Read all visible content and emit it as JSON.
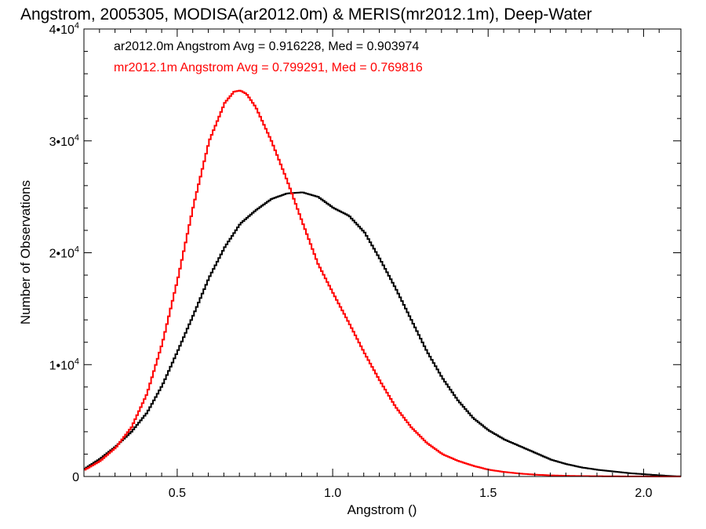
{
  "chart_data": {
    "type": "line",
    "title": "Angstrom, 2005305, MODISA(ar2012.0m) & MERIS(mr2012.1m), Deep-Water",
    "xlabel": "Angstrom ()",
    "ylabel": "Number of Observations",
    "xlim": [
      0.2,
      2.12
    ],
    "ylim": [
      0,
      40000
    ],
    "x_ticks": [
      {
        "value": 0.5,
        "label": "0.5"
      },
      {
        "value": 1.0,
        "label": "1.0"
      },
      {
        "value": 1.5,
        "label": "1.5"
      },
      {
        "value": 2.0,
        "label": "2.0"
      }
    ],
    "y_ticks": [
      {
        "value": 0,
        "mantissa": "0",
        "exp": ""
      },
      {
        "value": 10000,
        "mantissa": "1•10",
        "exp": "4"
      },
      {
        "value": 20000,
        "mantissa": "2•10",
        "exp": "4"
      },
      {
        "value": 30000,
        "mantissa": "3•10",
        "exp": "4"
      },
      {
        "value": 40000,
        "mantissa": "4•10",
        "exp": "4"
      }
    ],
    "grid": false,
    "style": "step",
    "series": [
      {
        "name": "ar2012.0m",
        "color": "#000000",
        "annotation": "ar2012.0m Angstrom Avg = 0.916228, Med = 0.903974",
        "points": [
          [
            0.2,
            700
          ],
          [
            0.25,
            1600
          ],
          [
            0.3,
            2700
          ],
          [
            0.35,
            4000
          ],
          [
            0.4,
            5700
          ],
          [
            0.45,
            8200
          ],
          [
            0.5,
            11300
          ],
          [
            0.55,
            14500
          ],
          [
            0.6,
            17800
          ],
          [
            0.65,
            20500
          ],
          [
            0.7,
            22600
          ],
          [
            0.75,
            23800
          ],
          [
            0.8,
            24800
          ],
          [
            0.85,
            25300
          ],
          [
            0.9,
            25400
          ],
          [
            0.95,
            25000
          ],
          [
            1.0,
            24000
          ],
          [
            1.05,
            23300
          ],
          [
            1.1,
            21800
          ],
          [
            1.15,
            19400
          ],
          [
            1.2,
            16800
          ],
          [
            1.25,
            14000
          ],
          [
            1.3,
            11200
          ],
          [
            1.35,
            8800
          ],
          [
            1.4,
            6800
          ],
          [
            1.45,
            5200
          ],
          [
            1.5,
            4100
          ],
          [
            1.55,
            3300
          ],
          [
            1.6,
            2700
          ],
          [
            1.65,
            2100
          ],
          [
            1.7,
            1500
          ],
          [
            1.75,
            1100
          ],
          [
            1.8,
            800
          ],
          [
            1.85,
            600
          ],
          [
            1.9,
            450
          ],
          [
            1.95,
            300
          ],
          [
            2.0,
            200
          ],
          [
            2.05,
            100
          ],
          [
            2.1,
            20
          ]
        ]
      },
      {
        "name": "mr2012.1m",
        "color": "#ff0000",
        "annotation": "mr2012.1m Angstrom Avg = 0.799291, Med = 0.769816",
        "points": [
          [
            0.2,
            600
          ],
          [
            0.25,
            1400
          ],
          [
            0.3,
            2600
          ],
          [
            0.35,
            4400
          ],
          [
            0.4,
            7400
          ],
          [
            0.45,
            12000
          ],
          [
            0.5,
            17800
          ],
          [
            0.55,
            24300
          ],
          [
            0.6,
            30000
          ],
          [
            0.65,
            33400
          ],
          [
            0.68,
            34400
          ],
          [
            0.7,
            34500
          ],
          [
            0.72,
            34200
          ],
          [
            0.75,
            33000
          ],
          [
            0.8,
            30000
          ],
          [
            0.85,
            26500
          ],
          [
            0.9,
            22700
          ],
          [
            0.95,
            19000
          ],
          [
            1.0,
            16300
          ],
          [
            1.05,
            13700
          ],
          [
            1.1,
            11000
          ],
          [
            1.15,
            8500
          ],
          [
            1.2,
            6200
          ],
          [
            1.25,
            4400
          ],
          [
            1.3,
            3000
          ],
          [
            1.35,
            2000
          ],
          [
            1.4,
            1400
          ],
          [
            1.45,
            950
          ],
          [
            1.5,
            600
          ],
          [
            1.55,
            400
          ],
          [
            1.6,
            260
          ],
          [
            1.65,
            160
          ],
          [
            1.7,
            100
          ],
          [
            1.75,
            60
          ],
          [
            1.8,
            35
          ],
          [
            1.9,
            15
          ],
          [
            2.0,
            5
          ],
          [
            2.1,
            0
          ]
        ]
      }
    ]
  }
}
